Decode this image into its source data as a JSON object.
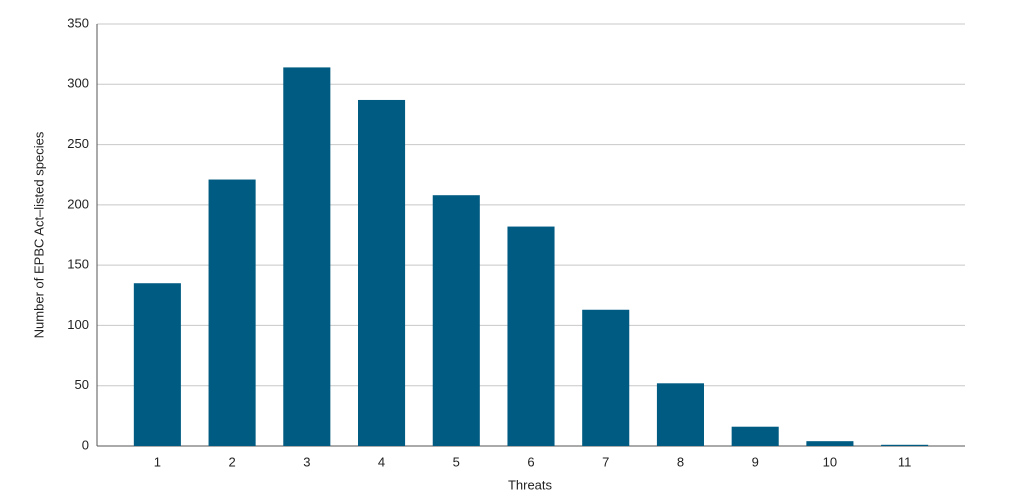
{
  "chart_data": {
    "type": "bar",
    "x_label": "Threats",
    "y_label": "Number of EPBC Act–listed species",
    "categories": [
      "1",
      "2",
      "3",
      "4",
      "5",
      "6",
      "7",
      "8",
      "9",
      "10",
      "11"
    ],
    "values": [
      135,
      221,
      314,
      287,
      208,
      182,
      113,
      52,
      16,
      4,
      1
    ],
    "color": "#005b82",
    "ylim": [
      0,
      350
    ],
    "yticks": [
      0,
      50,
      100,
      150,
      200,
      250,
      300,
      350
    ],
    "grid": true
  }
}
